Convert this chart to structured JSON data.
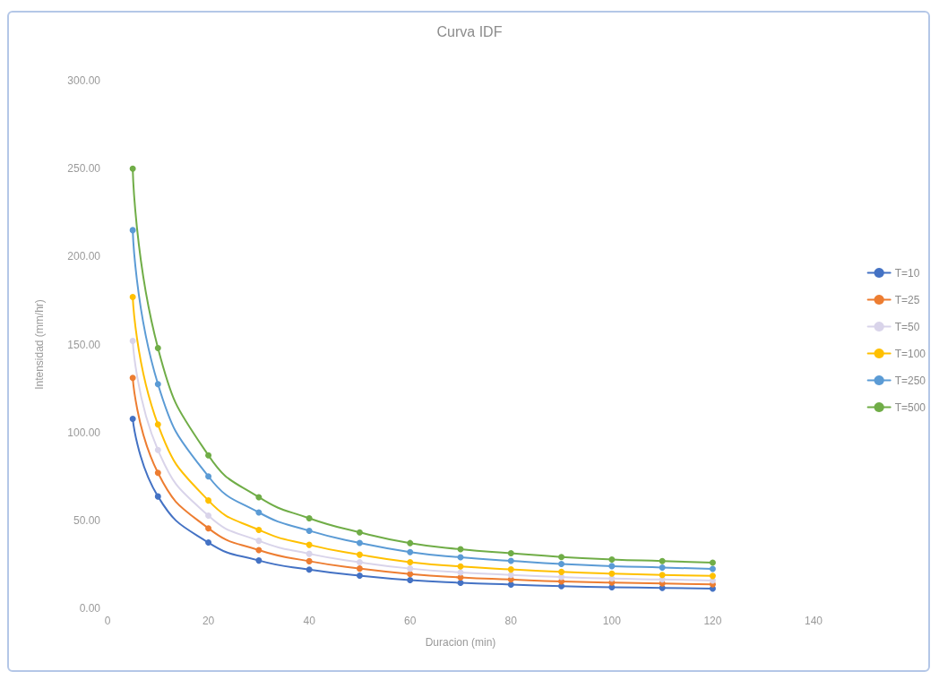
{
  "chart_data": {
    "type": "line",
    "title": "Curva IDF",
    "xlabel": "Duracion (min)",
    "ylabel": "Intensidad (mm/hr)",
    "x": [
      5,
      10,
      20,
      30,
      40,
      50,
      60,
      70,
      80,
      90,
      100,
      110,
      120
    ],
    "series": [
      {
        "name": "T=10",
        "color": "#4472c4",
        "values": [
          107.7,
          63.6,
          37.4,
          27.2,
          22.0,
          18.6,
          16.0,
          14.5,
          13.5,
          12.6,
          12.0,
          11.6,
          11.2
        ]
      },
      {
        "name": "T=25",
        "color": "#ed7d31",
        "values": [
          131,
          77,
          45.5,
          33.1,
          26.8,
          22.6,
          19.5,
          17.6,
          16.4,
          15.3,
          14.6,
          14.1,
          13.6
        ]
      },
      {
        "name": "T=50",
        "color": "#d9d4ea",
        "values": [
          152,
          90,
          52.7,
          38.4,
          31.0,
          26.2,
          22.6,
          20.4,
          19.0,
          17.8,
          16.9,
          16.4,
          15.8
        ]
      },
      {
        "name": "T=100",
        "color": "#ffc000",
        "values": [
          177,
          104.5,
          61.3,
          44.6,
          36.1,
          30.5,
          26.2,
          23.8,
          22.1,
          20.7,
          19.7,
          19.0,
          18.4
        ]
      },
      {
        "name": "T=250",
        "color": "#5b9bd5",
        "values": [
          215,
          127.5,
          75.0,
          54.5,
          44.1,
          37.2,
          32.0,
          29.0,
          27.0,
          25.2,
          24.0,
          23.2,
          22.4
        ]
      },
      {
        "name": "T=500",
        "color": "#70ad47",
        "values": [
          250,
          148,
          87.0,
          63.2,
          51.2,
          43.2,
          37.1,
          33.6,
          31.3,
          29.2,
          27.8,
          26.9,
          26.0
        ]
      }
    ],
    "xlim": [
      0,
      140
    ],
    "xticks": [
      0,
      20,
      40,
      60,
      80,
      100,
      120,
      140
    ],
    "ylim": [
      0,
      300
    ],
    "yticks": [
      {
        "value": 0,
        "label": "0.00"
      },
      {
        "value": 50,
        "label": "50.00"
      },
      {
        "value": 100,
        "label": "100.00"
      },
      {
        "value": 150,
        "label": "150.00"
      },
      {
        "value": 200,
        "label": "200.00"
      },
      {
        "value": 250,
        "label": "250.00"
      },
      {
        "value": 300,
        "label": "300.00"
      }
    ],
    "grid": false,
    "legend": "right",
    "marker": "circle",
    "line_style": "solid"
  }
}
